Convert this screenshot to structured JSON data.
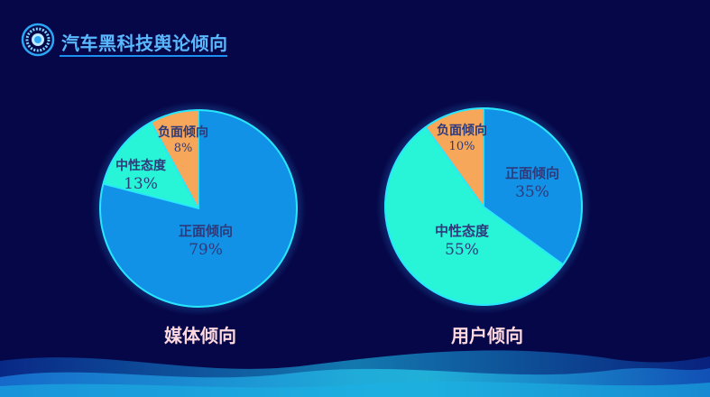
{
  "header": {
    "title": "汽车黑科技舆论倾向",
    "logo_icon": "circle-dial-icon"
  },
  "colors": {
    "positive": "#1292e7",
    "neutral": "#28f5d8",
    "negative": "#f6a75a",
    "background": "#050748",
    "label_text": "#2e3a7a"
  },
  "chart_data": [
    {
      "type": "pie",
      "title": "媒体倾向",
      "slices": [
        {
          "label": "正面倾向",
          "value": 79,
          "display": "79%"
        },
        {
          "label": "中性态度",
          "value": 13,
          "display": "13%"
        },
        {
          "label": "负面倾向",
          "value": 8,
          "display": "8%"
        }
      ]
    },
    {
      "type": "pie",
      "title": "用户倾向",
      "slices": [
        {
          "label": "正面倾向",
          "value": 35,
          "display": "35%"
        },
        {
          "label": "中性态度",
          "value": 55,
          "display": "55%"
        },
        {
          "label": "负面倾向",
          "value": 10,
          "display": "10%"
        }
      ]
    }
  ]
}
